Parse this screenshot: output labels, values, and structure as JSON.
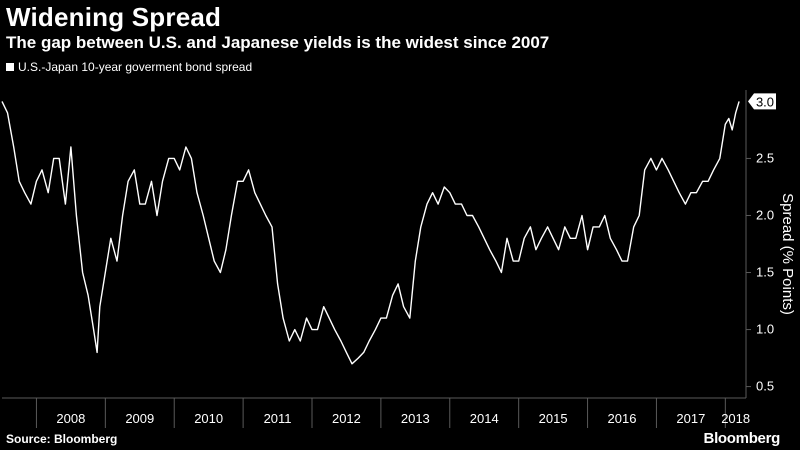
{
  "title": "Widening Spread",
  "subtitle": "The gap between U.S. and Japanese yields is the widest since 2007",
  "legend_label": "U.S.-Japan 10-year goverment bond spread",
  "footer": {
    "source": "Source: Bloomberg",
    "brand": "Bloomberg"
  },
  "colors": {
    "background": "#000000",
    "line": "#ffffff",
    "grid": "#5a5a5a"
  },
  "chart_data": {
    "type": "line",
    "xlabel": "",
    "ylabel": "Spread (% Points)",
    "ylim": [
      0.4,
      3.1
    ],
    "xlim": [
      2007.5,
      2018.3
    ],
    "x_ticks": [
      "2008",
      "2009",
      "2010",
      "2011",
      "2012",
      "2013",
      "2014",
      "2015",
      "2016",
      "2017",
      "2018"
    ],
    "y_ticks": [
      "0.5",
      "1.0",
      "1.5",
      "2.0",
      "2.5"
    ],
    "y_axis_side": "right",
    "grid": false,
    "last_value_label": "3.0",
    "series": [
      {
        "x": [
          2007.5,
          2007.58,
          2007.67,
          2007.75,
          2007.83,
          2007.92,
          2008.0,
          2008.08,
          2008.17,
          2008.25,
          2008.33,
          2008.42,
          2008.5,
          2008.58,
          2008.67,
          2008.75,
          2008.83,
          2008.88,
          2008.92,
          2009.0,
          2009.08,
          2009.17,
          2009.25,
          2009.33,
          2009.42,
          2009.5,
          2009.58,
          2009.67,
          2009.75,
          2009.83,
          2009.92,
          2010.0,
          2010.08,
          2010.17,
          2010.25,
          2010.33,
          2010.42,
          2010.5,
          2010.58,
          2010.67,
          2010.75,
          2010.83,
          2010.92,
          2011.0,
          2011.08,
          2011.17,
          2011.25,
          2011.33,
          2011.42,
          2011.5,
          2011.58,
          2011.67,
          2011.75,
          2011.83,
          2011.92,
          2012.0,
          2012.08,
          2012.17,
          2012.25,
          2012.33,
          2012.42,
          2012.5,
          2012.58,
          2012.67,
          2012.75,
          2012.83,
          2012.92,
          2013.0,
          2013.08,
          2013.17,
          2013.25,
          2013.33,
          2013.42,
          2013.5,
          2013.58,
          2013.67,
          2013.75,
          2013.83,
          2013.92,
          2014.0,
          2014.08,
          2014.17,
          2014.25,
          2014.33,
          2014.42,
          2014.5,
          2014.58,
          2014.67,
          2014.75,
          2014.83,
          2014.92,
          2015.0,
          2015.08,
          2015.17,
          2015.25,
          2015.33,
          2015.42,
          2015.5,
          2015.58,
          2015.67,
          2015.75,
          2015.83,
          2015.92,
          2016.0,
          2016.08,
          2016.17,
          2016.25,
          2016.33,
          2016.42,
          2016.5,
          2016.58,
          2016.67,
          2016.75,
          2016.83,
          2016.92,
          2017.0,
          2017.08,
          2017.17,
          2017.25,
          2017.33,
          2017.42,
          2017.5,
          2017.58,
          2017.67,
          2017.75,
          2017.83,
          2017.92,
          2018.0,
          2018.05,
          2018.1,
          2018.15,
          2018.2
        ],
        "y": [
          3.0,
          2.9,
          2.6,
          2.3,
          2.2,
          2.1,
          2.3,
          2.4,
          2.2,
          2.5,
          2.5,
          2.1,
          2.6,
          2.0,
          1.5,
          1.3,
          1.0,
          0.8,
          1.2,
          1.5,
          1.8,
          1.6,
          2.0,
          2.3,
          2.4,
          2.1,
          2.1,
          2.3,
          2.0,
          2.3,
          2.5,
          2.5,
          2.4,
          2.6,
          2.5,
          2.2,
          2.0,
          1.8,
          1.6,
          1.5,
          1.7,
          2.0,
          2.3,
          2.3,
          2.4,
          2.2,
          2.1,
          2.0,
          1.9,
          1.4,
          1.1,
          0.9,
          1.0,
          0.9,
          1.1,
          1.0,
          1.0,
          1.2,
          1.1,
          1.0,
          0.9,
          0.8,
          0.7,
          0.75,
          0.8,
          0.9,
          1.0,
          1.1,
          1.1,
          1.3,
          1.4,
          1.2,
          1.1,
          1.6,
          1.9,
          2.1,
          2.2,
          2.1,
          2.25,
          2.2,
          2.1,
          2.1,
          2.0,
          2.0,
          1.9,
          1.8,
          1.7,
          1.6,
          1.5,
          1.8,
          1.6,
          1.6,
          1.8,
          1.9,
          1.7,
          1.8,
          1.9,
          1.8,
          1.7,
          1.9,
          1.8,
          1.8,
          2.0,
          1.7,
          1.9,
          1.9,
          2.0,
          1.8,
          1.7,
          1.6,
          1.6,
          1.9,
          2.0,
          2.4,
          2.5,
          2.4,
          2.5,
          2.4,
          2.3,
          2.2,
          2.1,
          2.2,
          2.2,
          2.3,
          2.3,
          2.4,
          2.5,
          2.8,
          2.85,
          2.75,
          2.9,
          3.0
        ]
      }
    ]
  }
}
